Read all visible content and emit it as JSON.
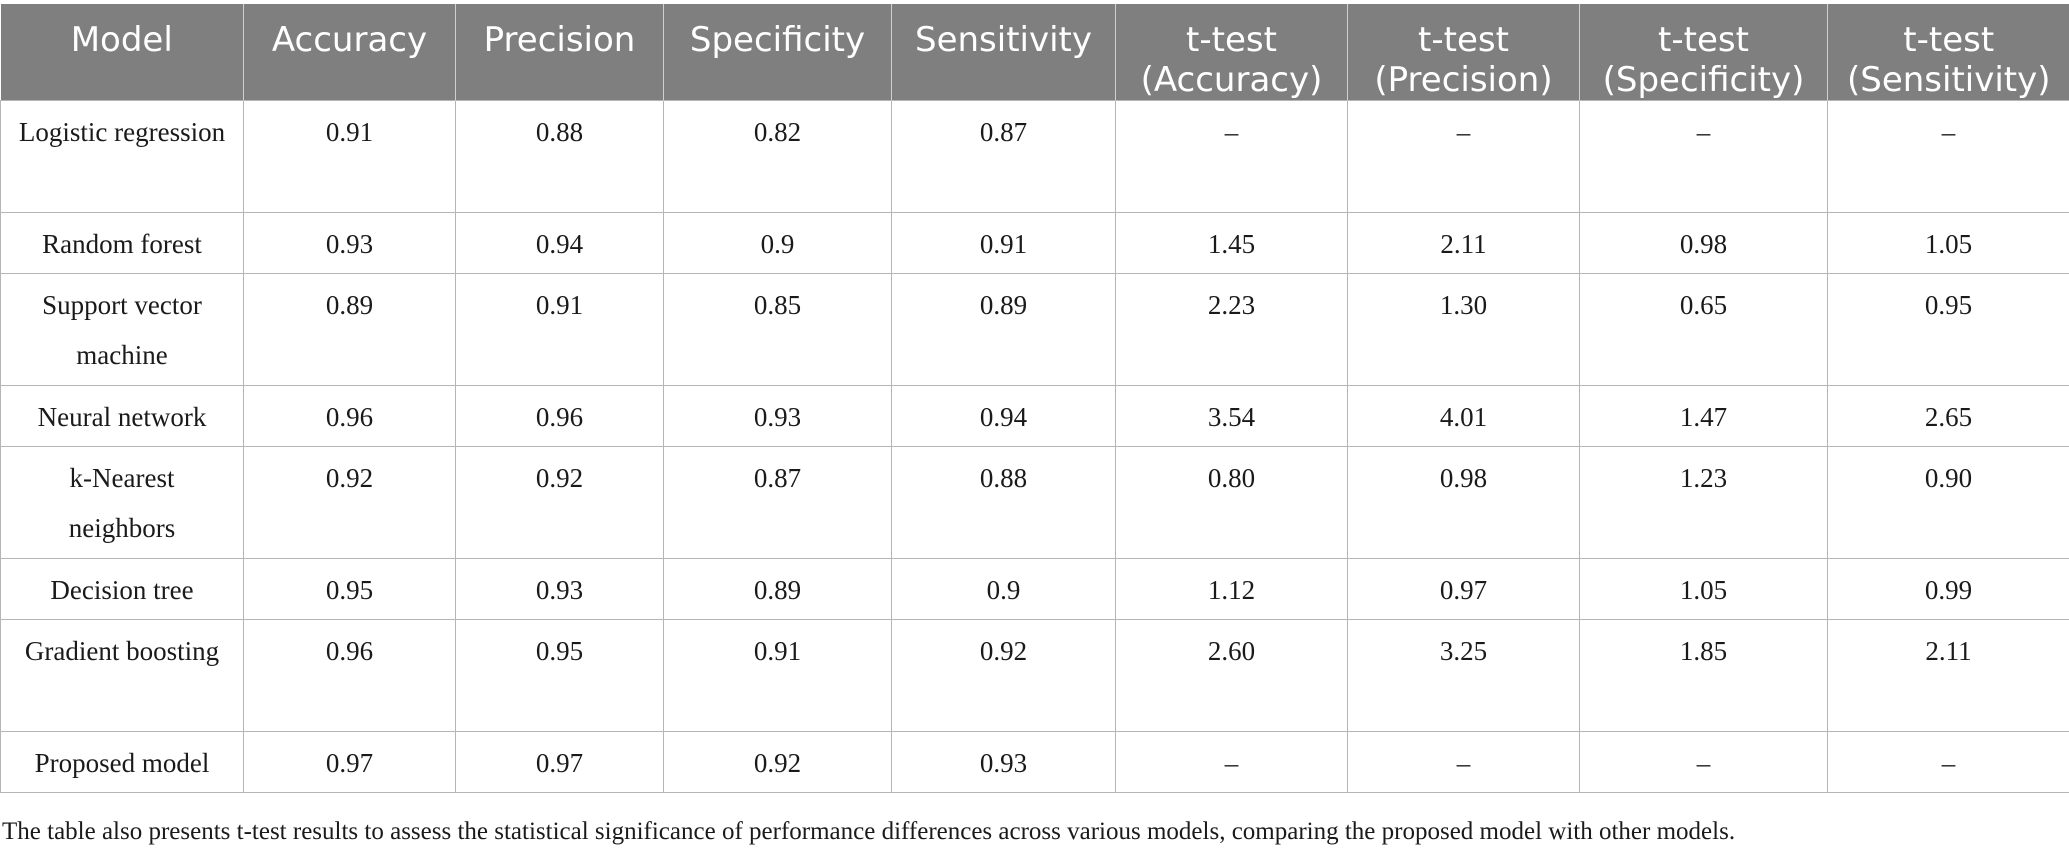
{
  "table": {
    "headers": [
      "Model",
      "Accuracy",
      "Precision",
      "Specificity",
      "Sensitivity",
      "t-test (Accuracy)",
      "t-test (Precision)",
      "t-test (Specificity)",
      "t-test (Sensitivity)"
    ],
    "rows": [
      [
        "Logistic regression",
        "0.91",
        "0.88",
        "0.82",
        "0.87",
        "–",
        "–",
        "–",
        "–"
      ],
      [
        "Random forest",
        "0.93",
        "0.94",
        "0.9",
        "0.91",
        "1.45",
        "2.11",
        "0.98",
        "1.05"
      ],
      [
        "Support vector machine",
        "0.89",
        "0.91",
        "0.85",
        "0.89",
        "2.23",
        "1.30",
        "0.65",
        "0.95"
      ],
      [
        "Neural network",
        "0.96",
        "0.96",
        "0.93",
        "0.94",
        "3.54",
        "4.01",
        "1.47",
        "2.65"
      ],
      [
        "k-Nearest neighbors",
        "0.92",
        "0.92",
        "0.87",
        "0.88",
        "0.80",
        "0.98",
        "1.23",
        "0.90"
      ],
      [
        "Decision tree",
        "0.95",
        "0.93",
        "0.89",
        "0.9",
        "1.12",
        "0.97",
        "1.05",
        "0.99"
      ],
      [
        "Gradient boosting",
        "0.96",
        "0.95",
        "0.91",
        "0.92",
        "2.60",
        "3.25",
        "1.85",
        "2.11"
      ],
      [
        "Proposed model",
        "0.97",
        "0.97",
        "0.92",
        "0.93",
        "–",
        "–",
        "–",
        "–"
      ]
    ]
  },
  "footnote": "The table also presents t-test results to assess the statistical significance of performance differences across various models, comparing the proposed model with other models."
}
